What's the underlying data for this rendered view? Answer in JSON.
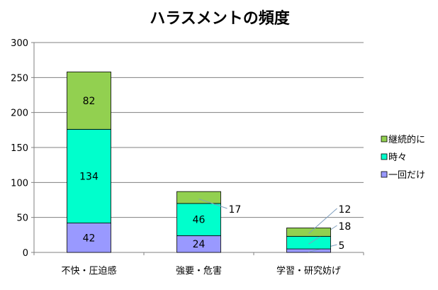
{
  "chart_data": {
    "type": "bar",
    "stacked": true,
    "title": "ハラスメントの頻度",
    "xlabel": "",
    "ylabel": "",
    "ylim": [
      0,
      300
    ],
    "yticks": [
      0,
      50,
      100,
      150,
      200,
      250,
      300
    ],
    "grid": true,
    "legend": "right",
    "categories": [
      "不快・圧迫感",
      "強要・危害",
      "学習・研究妨げ"
    ],
    "series": [
      {
        "name": "一回だけ",
        "values": [
          42,
          24,
          5
        ],
        "color": "#9999FF"
      },
      {
        "name": "時々",
        "values": [
          134,
          46,
          18
        ],
        "color": "#00FFCC"
      },
      {
        "name": "継続的に",
        "values": [
          82,
          17,
          12
        ],
        "color": "#92D050"
      }
    ]
  }
}
